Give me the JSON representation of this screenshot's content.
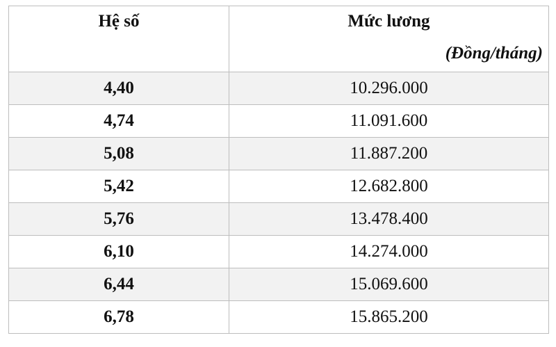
{
  "table": {
    "header": [
      "Hệ số",
      "Mức lương"
    ],
    "unit": "(Đồng/tháng)",
    "rows": [
      [
        "4,40",
        "10.296.000"
      ],
      [
        "4,74",
        "11.091.600"
      ],
      [
        "5,08",
        "11.887.200"
      ],
      [
        "5,42",
        "12.682.800"
      ],
      [
        "5,76",
        "13.478.400"
      ],
      [
        "6,10",
        "14.274.000"
      ],
      [
        "6,44",
        "15.069.600"
      ],
      [
        "6,78",
        "15.865.200"
      ]
    ]
  }
}
